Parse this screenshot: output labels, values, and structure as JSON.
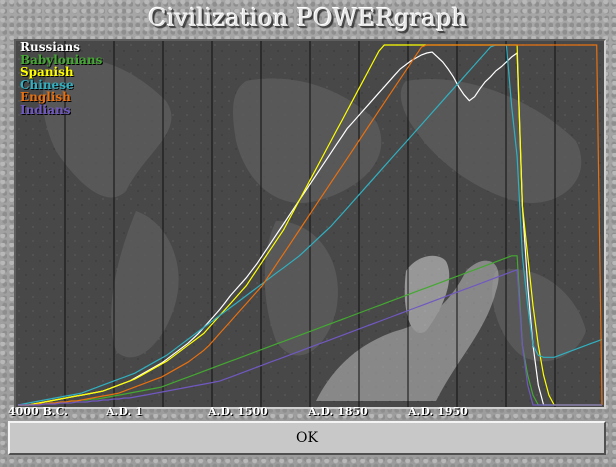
{
  "window": {
    "title": "Civilization POWERgraph"
  },
  "chart_data": {
    "type": "line",
    "title": "Civilization POWERgraph",
    "x_tick_labels": [
      "4000 B.C.",
      "A.D. 1",
      "A.D. 1500",
      "A.D. 1850",
      "A.D. 1950"
    ],
    "grid": "vertical lines",
    "legend_position": "top-left",
    "x": [
      0,
      2,
      4,
      6,
      8,
      10,
      12,
      14,
      16,
      18,
      20,
      22,
      24,
      26,
      28,
      30,
      32,
      34,
      36,
      38,
      40,
      42,
      44,
      46,
      48,
      50,
      52,
      54,
      56,
      58,
      60,
      62,
      64,
      66,
      68,
      70,
      72,
      74,
      76,
      78,
      80,
      82,
      84,
      86,
      88,
      90,
      92,
      94,
      96,
      98,
      100,
      102,
      104,
      106,
      108,
      110,
      112,
      114,
      116,
      118,
      120,
      122,
      124,
      126,
      128,
      130,
      132,
      134,
      136,
      138,
      140,
      142,
      144,
      146,
      148,
      150,
      152,
      154,
      156,
      158,
      160,
      162,
      164,
      166,
      168,
      170,
      172,
      174,
      176,
      178,
      180,
      182,
      184,
      186,
      188,
      190,
      192,
      194,
      196,
      198,
      200,
      202,
      204,
      206,
      208,
      210,
      212,
      214,
      216,
      218,
      220
    ],
    "series": [
      {
        "name": "Russians",
        "color": "#ffffff",
        "values": [
          0,
          0,
          0,
          1,
          2,
          3,
          4,
          5,
          6,
          7,
          8,
          9,
          10,
          11,
          12,
          13,
          14,
          16,
          18,
          20,
          22,
          24,
          27,
          30,
          33,
          36,
          39,
          42,
          46,
          50,
          54,
          58,
          62,
          67,
          72,
          78,
          84,
          90,
          96,
          103,
          110,
          116,
          122,
          128,
          135,
          142,
          150,
          158,
          166,
          174,
          182,
          190,
          198,
          206,
          214,
          222,
          230,
          238,
          246,
          254,
          262,
          270,
          278,
          284,
          290,
          296,
          302,
          308,
          314,
          320,
          326,
          332,
          338,
          342,
          346,
          349,
          352,
          354,
          355,
          350,
          345,
          338,
          330,
          320,
          312,
          306,
          310,
          318,
          325,
          330,
          336,
          340,
          345,
          350,
          354,
          200,
          120,
          60,
          20,
          0,
          0,
          0,
          0,
          0,
          0,
          0,
          0,
          0,
          0,
          0,
          0
        ]
      },
      {
        "name": "Babylonians",
        "color": "#44a832",
        "values": [
          0,
          0,
          0,
          0,
          1,
          1,
          2,
          2,
          3,
          3,
          4,
          4,
          5,
          5,
          6,
          6,
          7,
          8,
          9,
          10,
          11,
          12,
          13,
          14,
          15,
          16,
          17,
          18,
          20,
          22,
          24,
          26,
          28,
          30,
          32,
          34,
          36,
          38,
          40,
          42,
          44,
          46,
          48,
          50,
          52,
          54,
          56,
          58,
          60,
          62,
          64,
          66,
          68,
          70,
          72,
          74,
          76,
          78,
          80,
          82,
          84,
          86,
          88,
          90,
          92,
          94,
          96,
          98,
          100,
          102,
          104,
          106,
          108,
          110,
          112,
          114,
          116,
          118,
          120,
          122,
          124,
          126,
          128,
          130,
          132,
          134,
          136,
          138,
          140,
          142,
          144,
          146,
          148,
          150,
          150,
          60,
          30,
          10,
          0,
          0,
          0,
          0,
          0,
          0,
          0,
          0,
          0,
          0,
          0,
          0,
          0
        ]
      },
      {
        "name": "Spanish",
        "color": "#ffff00",
        "values": [
          0,
          0,
          0,
          1,
          2,
          3,
          4,
          5,
          6,
          7,
          8,
          9,
          10,
          11,
          12,
          13,
          14,
          16,
          18,
          20,
          22,
          24,
          26,
          29,
          32,
          35,
          38,
          41,
          44,
          48,
          52,
          56,
          60,
          64,
          68,
          72,
          78,
          84,
          90,
          96,
          102,
          108,
          114,
          120,
          128,
          136,
          144,
          152,
          160,
          168,
          176,
          186,
          196,
          206,
          216,
          226,
          236,
          246,
          256,
          266,
          276,
          286,
          296,
          306,
          316,
          326,
          336,
          346,
          356,
          362,
          362,
          362,
          362,
          362,
          362,
          362,
          362,
          362,
          362,
          362,
          362,
          362,
          362,
          362,
          362,
          362,
          362,
          362,
          362,
          362,
          362,
          362,
          362,
          362,
          362,
          200,
          150,
          100,
          60,
          30,
          10,
          0,
          0,
          0,
          0,
          0,
          0,
          0,
          0,
          0,
          0
        ]
      },
      {
        "name": "Chinese",
        "color": "#30b0c0",
        "values": [
          0,
          1,
          2,
          3,
          4,
          5,
          6,
          7,
          8,
          9,
          10,
          11,
          12,
          14,
          16,
          18,
          20,
          22,
          24,
          26,
          28,
          30,
          32,
          35,
          38,
          41,
          44,
          47,
          50,
          54,
          58,
          62,
          66,
          70,
          74,
          78,
          82,
          86,
          90,
          94,
          98,
          102,
          106,
          110,
          114,
          118,
          122,
          126,
          130,
          134,
          138,
          142,
          146,
          150,
          155,
          160,
          165,
          170,
          175,
          180,
          186,
          192,
          198,
          204,
          210,
          216,
          222,
          228,
          234,
          240,
          246,
          252,
          258,
          264,
          270,
          276,
          282,
          288,
          294,
          300,
          306,
          312,
          318,
          324,
          330,
          336,
          342,
          348,
          354,
          360,
          362,
          362,
          362,
          300,
          250,
          150,
          100,
          60,
          50,
          48,
          48,
          48,
          50,
          52,
          54,
          56,
          58,
          60,
          62,
          64,
          66
        ]
      },
      {
        "name": "English",
        "color": "#e87010",
        "values": [
          0,
          0,
          0,
          0,
          1,
          1,
          2,
          2,
          3,
          3,
          4,
          4,
          5,
          6,
          7,
          8,
          9,
          10,
          11,
          12,
          14,
          16,
          18,
          20,
          22,
          24,
          26,
          28,
          31,
          34,
          37,
          40,
          43,
          47,
          51,
          55,
          60,
          66,
          72,
          78,
          84,
          90,
          96,
          102,
          108,
          114,
          120,
          128,
          136,
          144,
          152,
          160,
          168,
          176,
          184,
          192,
          200,
          208,
          216,
          224,
          232,
          240,
          248,
          256,
          264,
          272,
          280,
          288,
          296,
          304,
          312,
          320,
          328,
          336,
          344,
          352,
          360,
          362,
          362,
          362,
          362,
          362,
          362,
          362,
          362,
          362,
          362,
          362,
          362,
          362,
          362,
          362,
          362,
          362,
          362,
          362,
          362,
          362,
          362,
          362,
          362,
          362,
          362,
          362,
          362,
          362,
          362,
          362,
          362,
          362,
          0
        ]
      },
      {
        "name": "Indians",
        "color": "#7058c0",
        "values": [
          0,
          0,
          0,
          0,
          0,
          1,
          1,
          1,
          2,
          2,
          2,
          3,
          3,
          3,
          4,
          4,
          5,
          5,
          6,
          6,
          7,
          7,
          8,
          9,
          10,
          11,
          12,
          13,
          14,
          15,
          16,
          17,
          18,
          19,
          20,
          21,
          22,
          23,
          24,
          26,
          28,
          30,
          32,
          34,
          36,
          38,
          40,
          42,
          44,
          46,
          48,
          50,
          52,
          54,
          56,
          58,
          60,
          62,
          64,
          66,
          68,
          70,
          72,
          74,
          76,
          78,
          80,
          82,
          84,
          86,
          88,
          90,
          92,
          94,
          96,
          98,
          100,
          102,
          104,
          106,
          108,
          110,
          112,
          114,
          116,
          118,
          120,
          122,
          124,
          126,
          128,
          130,
          132,
          134,
          136,
          60,
          20,
          0,
          0,
          0,
          0,
          0,
          0,
          0,
          0,
          0,
          0,
          0,
          0,
          0,
          0
        ]
      }
    ]
  },
  "buttons": {
    "ok": "OK"
  }
}
